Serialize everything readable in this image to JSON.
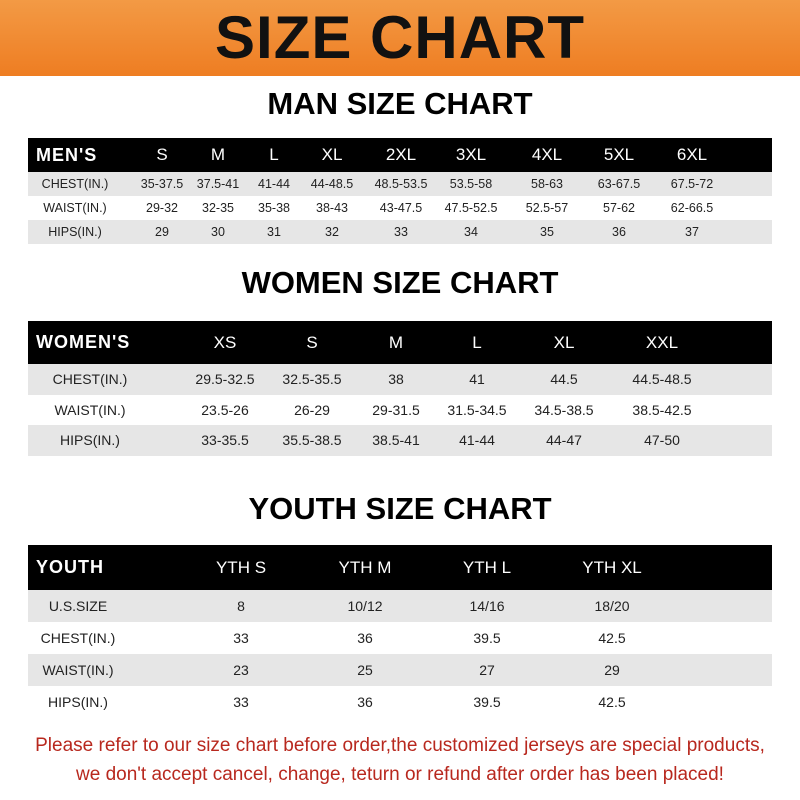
{
  "title": "SIZE CHART",
  "men": {
    "title": "MAN SIZE CHART",
    "header": [
      "MEN'S",
      "S",
      "M",
      "L",
      "XL",
      "2XL",
      "3XL",
      "4XL",
      "5XL",
      "6XL"
    ],
    "rows": [
      [
        "CHEST(IN.)",
        "35-37.5",
        "37.5-41",
        "41-44",
        "44-48.5",
        "48.5-53.5",
        "53.5-58",
        "58-63",
        "63-67.5",
        "67.5-72"
      ],
      [
        "WAIST(IN.)",
        "29-32",
        "32-35",
        "35-38",
        "38-43",
        "43-47.5",
        "47.5-52.5",
        "52.5-57",
        "57-62",
        "62-66.5"
      ],
      [
        "HIPS(IN.)",
        "29",
        "30",
        "31",
        "32",
        "33",
        "34",
        "35",
        "36",
        "37"
      ]
    ]
  },
  "women": {
    "title": "WOMEN SIZE CHART",
    "header": [
      "WOMEN'S",
      "XS",
      "S",
      "M",
      "L",
      "XL",
      "XXL"
    ],
    "rows": [
      [
        "CHEST(IN.)",
        "29.5-32.5",
        "32.5-35.5",
        "38",
        "41",
        "44.5",
        "44.5-48.5"
      ],
      [
        "WAIST(IN.)",
        "23.5-26",
        "26-29",
        "29-31.5",
        "31.5-34.5",
        "34.5-38.5",
        "38.5-42.5"
      ],
      [
        "HIPS(IN.)",
        "33-35.5",
        "35.5-38.5",
        "38.5-41",
        "41-44",
        "44-47",
        "47-50"
      ]
    ]
  },
  "youth": {
    "title": "YOUTH SIZE CHART",
    "header": [
      "YOUTH",
      "YTH S",
      "YTH M",
      "YTH L",
      "YTH XL"
    ],
    "rows": [
      [
        "U.S.SIZE",
        "8",
        "10/12",
        "14/16",
        "18/20"
      ],
      [
        "CHEST(IN.)",
        "33",
        "36",
        "39.5",
        "42.5"
      ],
      [
        "WAIST(IN.)",
        "23",
        "25",
        "27",
        "29"
      ],
      [
        "HIPS(IN.)",
        "33",
        "36",
        "39.5",
        "42.5"
      ]
    ]
  },
  "footer": {
    "line1": "Please refer to our size chart before order,the customized jerseys are special products,",
    "line2": "we don't accept cancel, change, teturn or refund after order has been placed!"
  },
  "colors": {
    "banner": "#ee7d22",
    "footer_text": "#b8281e",
    "header_row": "#000000",
    "stripe": "#e6e6e6"
  }
}
